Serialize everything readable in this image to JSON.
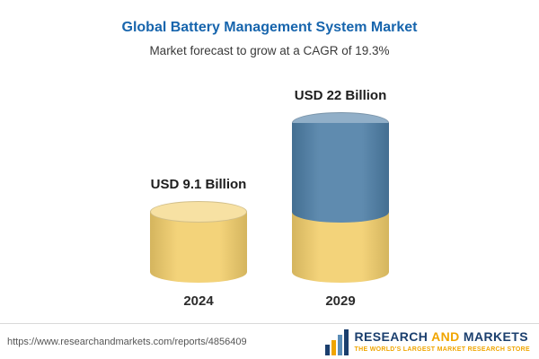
{
  "colors": {
    "title_blue": "#1765AD",
    "bar_yellow": "#F2CE6B",
    "bar_blue": "#4D7EA6",
    "logo_navy": "#1B3F6E",
    "logo_gold": "#F0A500"
  },
  "chart_data": {
    "type": "bar",
    "title": "Global Battery Management System Market",
    "subtitle": "Market forecast to grow at a CAGR of 19.3%",
    "categories": [
      "2024",
      "2029"
    ],
    "values": [
      9.1,
      22
    ],
    "value_labels": [
      "USD 9.1 Billion",
      "USD 22 Billion"
    ],
    "unit": "USD Billion",
    "ylim": [
      0,
      22
    ],
    "grid": false,
    "legend": "none",
    "bars": [
      {
        "category": "2024",
        "total": 9.1,
        "segments": [
          {
            "value": 9.1,
            "color": "#F2CE6B"
          }
        ]
      },
      {
        "category": "2029",
        "total": 22,
        "segments": [
          {
            "value": 9.1,
            "color": "#F2CE6B"
          },
          {
            "value": 12.9,
            "color": "#4D7EA6"
          }
        ]
      }
    ]
  },
  "footer": {
    "url": "https://www.researchandmarkets.com/reports/4856409",
    "logo": {
      "word1": "RESEARCH",
      "word2": "AND",
      "word3": "MARKETS",
      "tagline": "THE WORLD'S LARGEST MARKET RESEARCH STORE"
    }
  }
}
